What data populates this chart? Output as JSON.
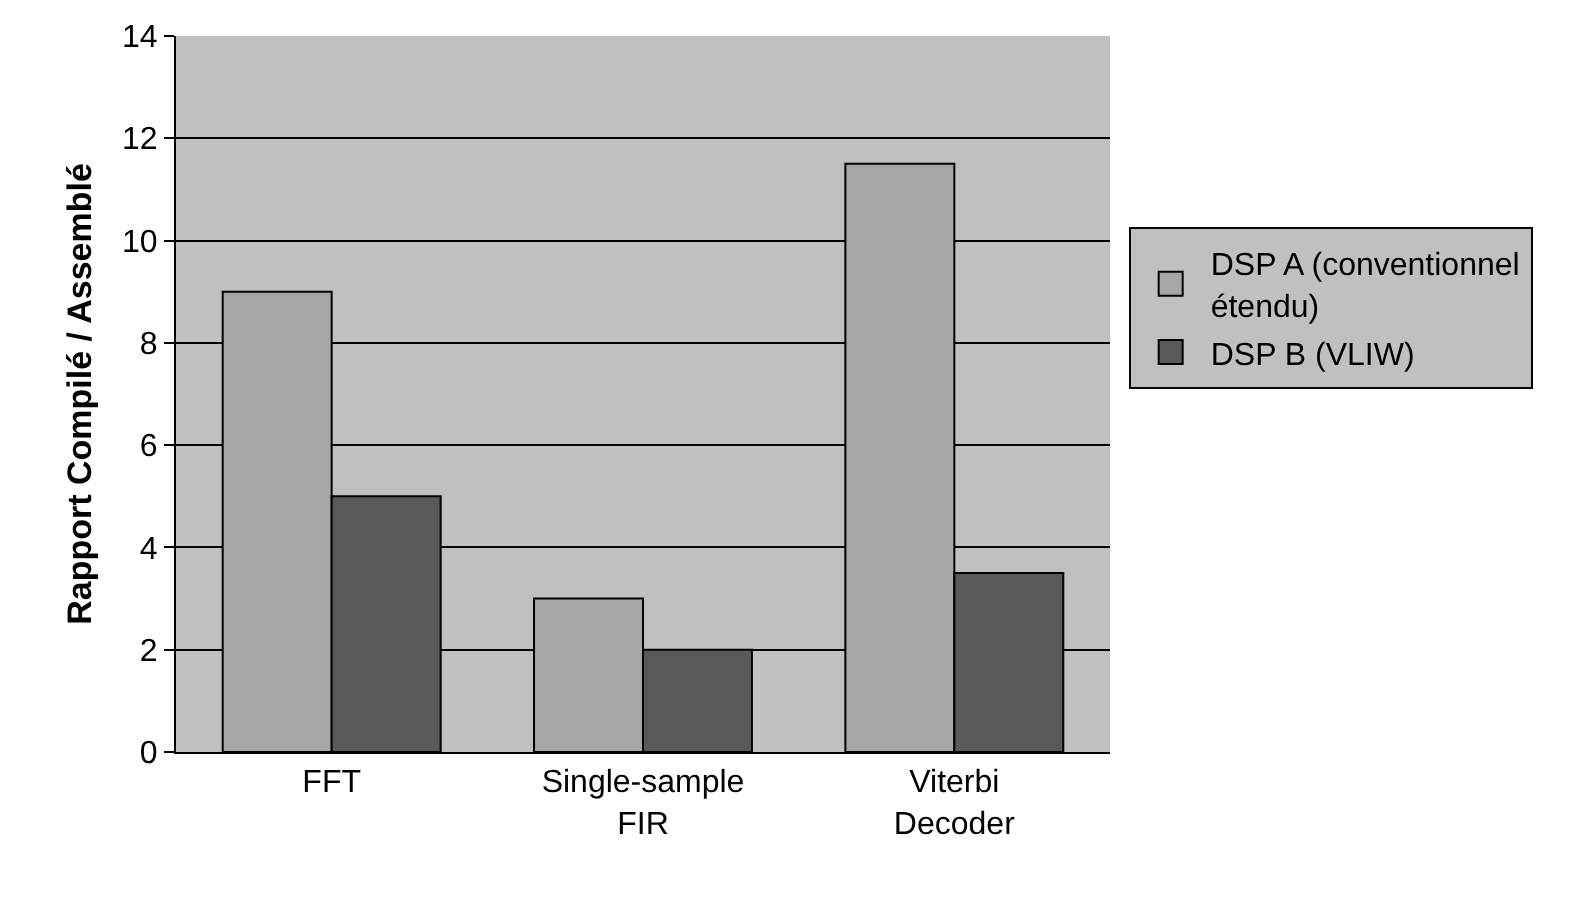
{
  "chart_data": {
    "type": "bar",
    "ylabel": "Rapport Compilé / Assemblé",
    "categories": [
      "FFT",
      "Single-sample FIR",
      "Viterbi Decoder"
    ],
    "series": [
      {
        "name": "DSP A (conventionnel étendu)",
        "color": "#a6a6a6",
        "values": [
          9,
          3,
          11.5
        ]
      },
      {
        "name": "DSP B (VLIW)",
        "color": "#595959",
        "values": [
          5,
          2,
          3.5
        ]
      }
    ],
    "ylim": [
      0,
      14
    ],
    "yticks": [
      0,
      2,
      4,
      6,
      8,
      10,
      12,
      14
    ],
    "grid": "y",
    "legend": "right"
  }
}
